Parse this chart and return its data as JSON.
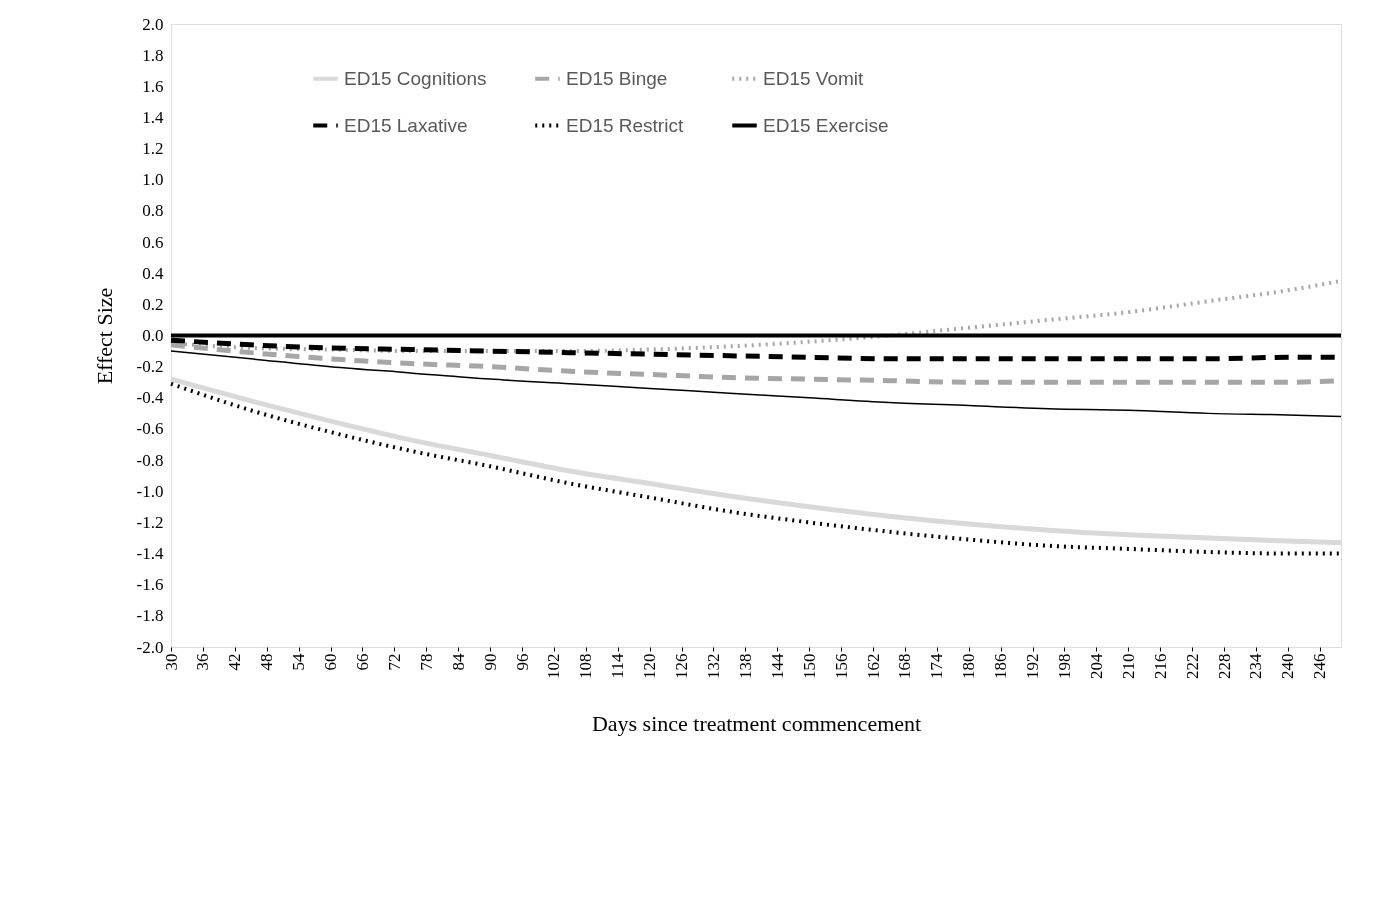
{
  "chart_data": {
    "type": "line",
    "xlabel": "Days since treatment commencement",
    "ylabel": "Effect Size",
    "x": [
      30,
      45,
      60,
      75,
      90,
      105,
      120,
      135,
      150,
      165,
      180,
      195,
      210,
      225,
      240,
      250
    ],
    "series": [
      {
        "name": "ED15 Cognitions",
        "color": "#d9d9d9",
        "line_style": "solid",
        "values": [
          -0.28,
          -0.42,
          -0.55,
          -0.67,
          -0.77,
          -0.87,
          -0.95,
          -1.03,
          -1.1,
          -1.16,
          -1.21,
          -1.25,
          -1.28,
          -1.3,
          -1.32,
          -1.33
        ]
      },
      {
        "name": "ED15 Binge",
        "color": "#a6a6a6",
        "line_style": "dashed",
        "values": [
          -0.06,
          -0.11,
          -0.15,
          -0.18,
          -0.2,
          -0.23,
          -0.25,
          -0.27,
          -0.28,
          -0.29,
          -0.3,
          -0.3,
          -0.3,
          -0.3,
          -0.3,
          -0.29
        ]
      },
      {
        "name": "ED15 Vomit",
        "color": "#a6a6a6",
        "line_style": "dotted",
        "values": [
          -0.05,
          -0.08,
          -0.09,
          -0.1,
          -0.1,
          -0.1,
          -0.09,
          -0.07,
          -0.04,
          0.0,
          0.05,
          0.1,
          0.15,
          0.22,
          0.29,
          0.35
        ]
      },
      {
        "name": "ED15 Laxative",
        "color": "#000000",
        "line_style": "dashed",
        "values": [
          -0.03,
          -0.06,
          -0.08,
          -0.09,
          -0.1,
          -0.11,
          -0.12,
          -0.13,
          -0.14,
          -0.15,
          -0.15,
          -0.15,
          -0.15,
          -0.15,
          -0.14,
          -0.14
        ]
      },
      {
        "name": "ED15 Restrict",
        "color": "#000000",
        "line_style": "dotted",
        "values": [
          -0.31,
          -0.48,
          -0.62,
          -0.74,
          -0.84,
          -0.95,
          -1.04,
          -1.13,
          -1.2,
          -1.26,
          -1.31,
          -1.35,
          -1.37,
          -1.39,
          -1.4,
          -1.4
        ]
      },
      {
        "name": "ED15 Exercise",
        "color": "#000000",
        "line_style": "solid",
        "values": [
          -0.1,
          -0.15,
          -0.2,
          -0.24,
          -0.28,
          -0.31,
          -0.34,
          -0.37,
          -0.4,
          -0.43,
          -0.45,
          -0.47,
          -0.48,
          -0.5,
          -0.51,
          -0.52
        ]
      }
    ],
    "xlim": [
      30,
      250
    ],
    "xticks": [
      30,
      36,
      42,
      48,
      54,
      60,
      66,
      72,
      78,
      84,
      90,
      96,
      102,
      108,
      114,
      120,
      126,
      132,
      138,
      144,
      150,
      156,
      162,
      168,
      174,
      180,
      186,
      192,
      198,
      204,
      210,
      216,
      222,
      228,
      234,
      240,
      246
    ],
    "ylim": [
      -2,
      2
    ],
    "yticks": [
      {
        "value": -2,
        "label": "-2.0"
      },
      {
        "value": -1.8,
        "label": "-1.8"
      },
      {
        "value": -1.6,
        "label": "-1.6"
      },
      {
        "value": -1.4,
        "label": "-1.4"
      },
      {
        "value": -1.2,
        "label": "-1.2"
      },
      {
        "value": -1,
        "label": "-1.0"
      },
      {
        "value": -0.8,
        "label": "-0.8"
      },
      {
        "value": -0.6,
        "label": "-0.6"
      },
      {
        "value": -0.4,
        "label": "-0.4"
      },
      {
        "value": -0.2,
        "label": "-0.2"
      },
      {
        "value": 0,
        "label": "0.0"
      },
      {
        "value": 0.2,
        "label": "0.2"
      },
      {
        "value": 0.4,
        "label": "0.4"
      },
      {
        "value": 0.6,
        "label": "0.6"
      },
      {
        "value": 0.8,
        "label": "0.8"
      },
      {
        "value": 1,
        "label": "1.0"
      },
      {
        "value": 1.2,
        "label": "1.2"
      },
      {
        "value": 1.4,
        "label": "1.4"
      },
      {
        "value": 1.6,
        "label": "1.6"
      },
      {
        "value": 1.8,
        "label": "1.8"
      },
      {
        "value": 2,
        "label": "2.0"
      }
    ],
    "ref_lines": [
      {
        "axis": "y",
        "value": 0,
        "color": "#000000",
        "line_style": "solid"
      }
    ],
    "grid": false,
    "legend": "top",
    "marker": "none"
  }
}
